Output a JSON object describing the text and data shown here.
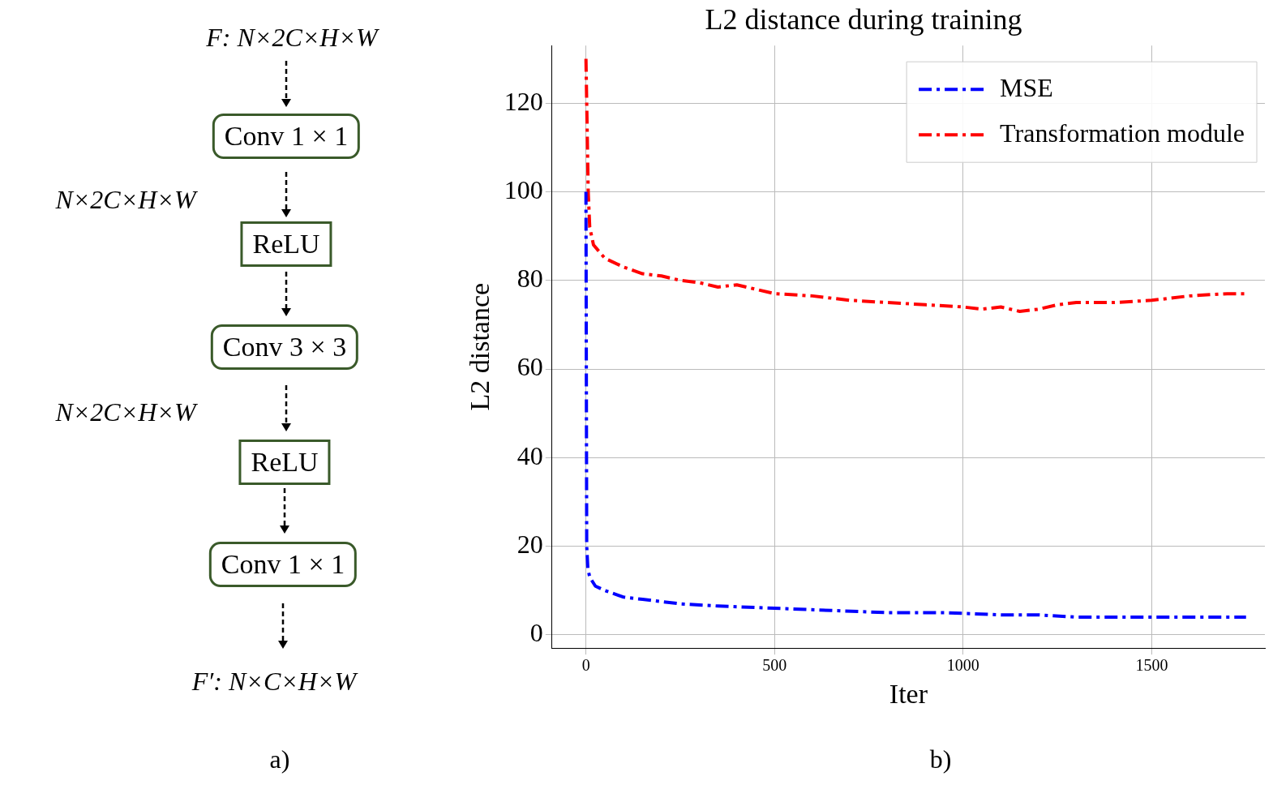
{
  "chart_data": {
    "type": "line",
    "title": "L2 distance during training",
    "xlabel": "Iter",
    "ylabel": "L2 distance",
    "annotations": [
      "F: N×2C×H×W",
      "Conv 1 × 1",
      "N×2C×H×W",
      "ReLU",
      "Conv 3 × 3",
      "N×2C×H×W",
      "ReLU",
      "Conv 1 × 1",
      "F′: N×C×H×W",
      "a)",
      "b)"
    ],
    "xlim": [
      -90,
      1800
    ],
    "xticks": [
      0,
      500,
      1000,
      1500
    ],
    "ylim": [
      -3,
      133
    ],
    "yticks": [
      0,
      20,
      40,
      60,
      80,
      100,
      120
    ],
    "grid": true,
    "legend": "top right",
    "line_style": "dashed",
    "marker": "none",
    "series": [
      {
        "name": "MSE",
        "color": "#0000ff",
        "x": [
          0,
          2,
          5,
          10,
          25,
          50,
          100,
          150,
          250,
          350,
          500,
          650,
          800,
          950,
          1100,
          1200,
          1300,
          1450,
          1600,
          1750
        ],
        "values": [
          100,
          20,
          15,
          13,
          11,
          10,
          8.5,
          8,
          7,
          6.5,
          6,
          5.5,
          5,
          5,
          4.5,
          4.5,
          4,
          4,
          4,
          4
        ]
      },
      {
        "name": "Transformation module",
        "color": "#ff0000",
        "x": [
          0,
          3,
          6,
          10,
          20,
          50,
          100,
          150,
          200,
          250,
          300,
          350,
          400,
          450,
          500,
          600,
          700,
          800,
          900,
          1000,
          1050,
          1100,
          1150,
          1200,
          1250,
          1300,
          1400,
          1500,
          1600,
          1700,
          1750
        ],
        "values": [
          130,
          115,
          100,
          92,
          88,
          85,
          83,
          81.5,
          81,
          80,
          79.5,
          78.5,
          79,
          78,
          77,
          76.5,
          75.5,
          75,
          74.5,
          74,
          73.5,
          74,
          73,
          73.5,
          74.5,
          75,
          75,
          75.5,
          76.5,
          77,
          77
        ]
      }
    ]
  }
}
